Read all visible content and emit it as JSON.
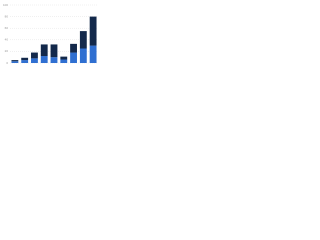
{
  "chart_data": {
    "type": "stacked-bar",
    "categories": [
      null,
      null,
      null,
      null,
      null,
      null,
      null,
      null,
      null
    ],
    "series": [
      {
        "color": "#2f6fd1",
        "values": [
          3,
          5,
          8,
          12,
          10,
          6,
          18,
          25,
          30
        ]
      },
      {
        "color": "#13294b",
        "values": [
          2,
          4,
          10,
          20,
          22,
          5,
          15,
          30,
          50
        ]
      }
    ],
    "ylim": [
      0,
      100
    ],
    "yticks": [
      0,
      20,
      40,
      60,
      80,
      100
    ],
    "grid": true
  }
}
